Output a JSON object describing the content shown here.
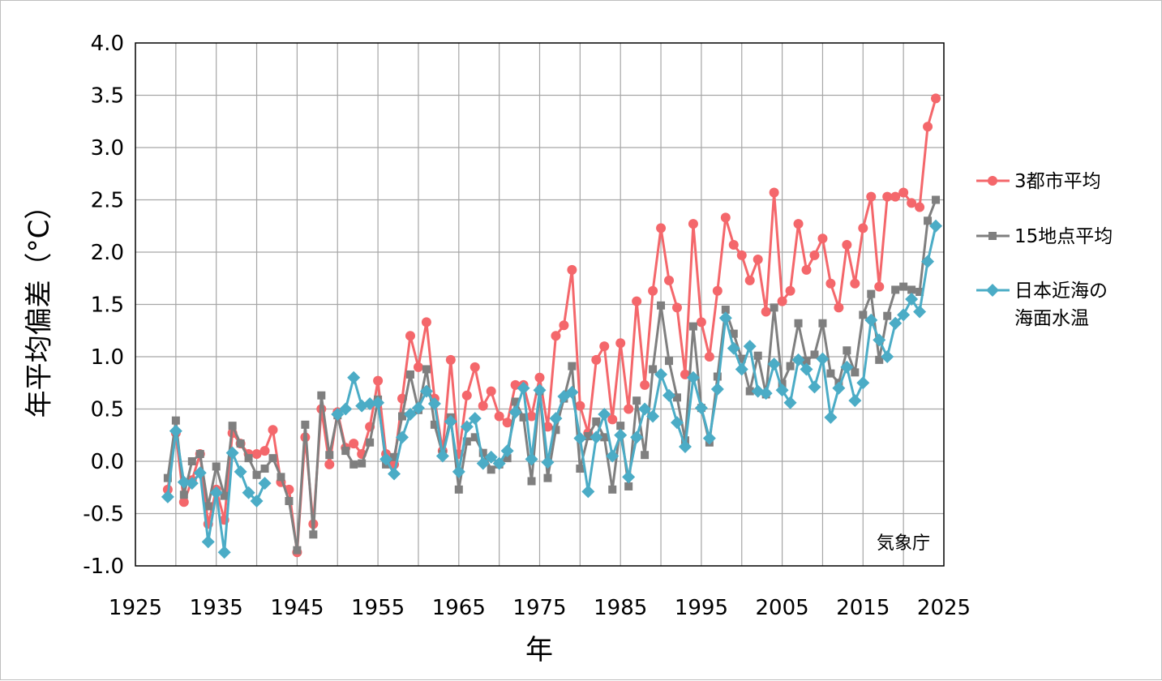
{
  "chart_data": {
    "type": "line",
    "xlabel": "年",
    "ylabel": "年平均偏差（°C）",
    "source_note": "気象庁",
    "xlim": [
      1925,
      2025
    ],
    "ylim": [
      -1.0,
      4.0
    ],
    "x_ticks": [
      "1925",
      "1935",
      "1945",
      "1955",
      "1965",
      "1975",
      "1985",
      "1995",
      "2005",
      "2015",
      "2025"
    ],
    "y_ticks": [
      "4.0",
      "3.5",
      "3.0",
      "2.5",
      "2.0",
      "1.5",
      "1.0",
      "0.5",
      "0.0",
      "-0.5",
      "-1.0"
    ],
    "grid": true,
    "legend_position": "right",
    "series": [
      {
        "name": "3都市平均",
        "color": "#f4676b",
        "marker": "circle",
        "x_start": 1929,
        "values": [
          -0.27,
          0.27,
          -0.39,
          -0.18,
          0.07,
          -0.6,
          -0.27,
          -0.56,
          0.27,
          0.17,
          0.07,
          0.07,
          0.1,
          0.3,
          -0.2,
          -0.27,
          -0.87,
          0.23,
          -0.6,
          0.5,
          -0.03,
          0.47,
          0.13,
          0.17,
          0.07,
          0.33,
          0.77,
          0.07,
          -0.03,
          0.6,
          1.2,
          0.9,
          1.33,
          0.6,
          0.1,
          0.97,
          0.07,
          0.63,
          0.9,
          0.53,
          0.67,
          0.43,
          0.37,
          0.73,
          0.73,
          0.43,
          0.8,
          0.33,
          1.2,
          1.3,
          1.83,
          0.53,
          0.27,
          0.97,
          1.1,
          0.4,
          1.13,
          0.5,
          1.53,
          0.73,
          1.63,
          2.23,
          1.73,
          1.47,
          0.83,
          2.27,
          1.33,
          1.0,
          1.63,
          2.33,
          2.07,
          1.97,
          1.73,
          1.93,
          1.43,
          2.57,
          1.53,
          1.63,
          2.27,
          1.83,
          1.97,
          2.13,
          1.7,
          1.47,
          2.07,
          1.7,
          2.23,
          2.53,
          1.67,
          2.53,
          2.53,
          2.57,
          2.47,
          2.43,
          3.2,
          3.47
        ]
      },
      {
        "name": "15地点平均",
        "color": "#7f7f7f",
        "marker": "square",
        "x_start": 1929,
        "values": [
          -0.16,
          0.39,
          -0.32,
          0.0,
          0.07,
          -0.43,
          -0.05,
          -0.33,
          0.34,
          0.17,
          0.03,
          -0.13,
          -0.07,
          0.03,
          -0.15,
          -0.38,
          -0.85,
          0.35,
          -0.7,
          0.63,
          0.06,
          0.44,
          0.1,
          -0.03,
          -0.02,
          0.18,
          0.59,
          -0.03,
          0.04,
          0.43,
          0.83,
          0.49,
          0.88,
          0.35,
          0.07,
          0.42,
          -0.27,
          0.19,
          0.23,
          0.08,
          -0.08,
          -0.03,
          0.03,
          0.57,
          0.42,
          -0.19,
          0.67,
          -0.16,
          0.3,
          0.6,
          0.91,
          -0.07,
          0.24,
          0.38,
          0.23,
          -0.27,
          0.34,
          -0.24,
          0.58,
          0.06,
          0.88,
          1.49,
          0.96,
          0.61,
          0.2,
          1.29,
          0.51,
          0.18,
          0.81,
          1.45,
          1.22,
          0.98,
          0.67,
          1.01,
          0.64,
          1.47,
          0.74,
          0.91,
          1.32,
          0.96,
          1.02,
          1.32,
          0.84,
          0.75,
          1.06,
          0.85,
          1.4,
          1.6,
          0.97,
          1.39,
          1.64,
          1.67,
          1.64,
          1.62,
          2.3,
          2.5
        ]
      },
      {
        "name": "日本近海の海面水温",
        "color": "#4bacc6",
        "marker": "diamond",
        "x_start": 1929,
        "values": [
          -0.34,
          0.29,
          -0.2,
          -0.21,
          -0.11,
          -0.77,
          -0.3,
          -0.87,
          0.08,
          -0.1,
          -0.3,
          -0.38,
          -0.21,
          null,
          null,
          null,
          null,
          null,
          null,
          null,
          null,
          0.45,
          0.5,
          0.8,
          0.53,
          0.55,
          0.56,
          0.02,
          -0.12,
          0.23,
          0.45,
          0.51,
          0.67,
          0.55,
          0.05,
          0.38,
          -0.1,
          0.33,
          0.41,
          -0.02,
          0.04,
          -0.02,
          0.1,
          0.47,
          0.7,
          0.02,
          0.68,
          -0.01,
          0.41,
          0.62,
          0.66,
          0.22,
          -0.29,
          0.23,
          0.45,
          0.05,
          0.25,
          -0.15,
          0.23,
          0.5,
          0.43,
          0.83,
          0.63,
          0.37,
          0.14,
          0.8,
          0.51,
          0.22,
          0.69,
          1.37,
          1.08,
          0.88,
          1.1,
          0.67,
          0.65,
          0.93,
          0.68,
          0.56,
          0.97,
          0.88,
          0.71,
          0.98,
          0.42,
          0.7,
          0.9,
          0.58,
          0.75,
          1.35,
          1.16,
          1.0,
          1.32,
          1.4,
          1.55,
          1.43,
          1.91,
          2.25
        ]
      }
    ]
  }
}
